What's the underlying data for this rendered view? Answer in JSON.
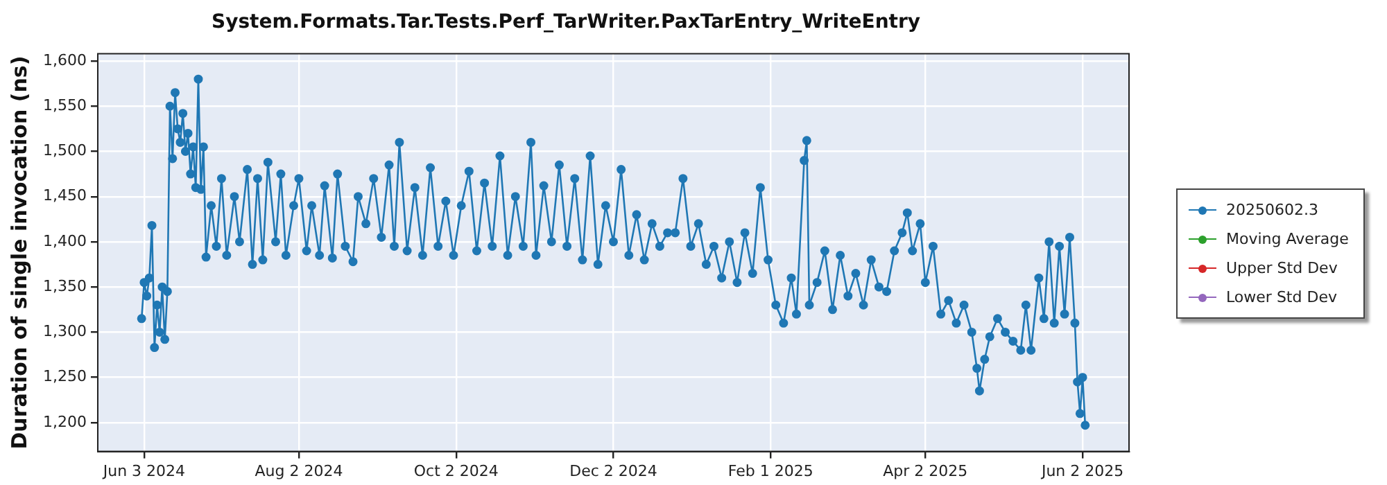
{
  "chart_data": {
    "type": "line",
    "title": "System.Formats.Tar.Tests.Perf_TarWriter.PaxTarEntry_WriteEntry",
    "ylabel": "Duration of single invocation (ns)",
    "x": [
      "2024-06-02",
      "2024-06-03",
      "2024-06-04",
      "2024-06-05",
      "2024-06-06",
      "2024-06-07",
      "2024-06-08",
      "2024-06-09",
      "2024-06-10",
      "2024-06-11",
      "2024-06-12",
      "2024-06-13",
      "2024-06-14",
      "2024-06-15",
      "2024-06-16",
      "2024-06-17",
      "2024-06-18",
      "2024-06-19",
      "2024-06-20",
      "2024-06-21",
      "2024-06-22",
      "2024-06-23",
      "2024-06-24",
      "2024-06-25",
      "2024-06-26",
      "2024-06-27",
      "2024-06-29",
      "2024-07-01",
      "2024-07-03",
      "2024-07-05",
      "2024-07-08",
      "2024-07-10",
      "2024-07-13",
      "2024-07-15",
      "2024-07-17",
      "2024-07-19",
      "2024-07-21",
      "2024-07-24",
      "2024-07-26",
      "2024-07-28",
      "2024-07-31",
      "2024-08-02",
      "2024-08-05",
      "2024-08-07",
      "2024-08-10",
      "2024-08-12",
      "2024-08-15",
      "2024-08-17",
      "2024-08-20",
      "2024-08-23",
      "2024-08-25",
      "2024-08-28",
      "2024-08-31",
      "2024-09-03",
      "2024-09-06",
      "2024-09-08",
      "2024-09-10",
      "2024-09-13",
      "2024-09-16",
      "2024-09-19",
      "2024-09-22",
      "2024-09-25",
      "2024-09-28",
      "2024-10-01",
      "2024-10-04",
      "2024-10-07",
      "2024-10-10",
      "2024-10-13",
      "2024-10-16",
      "2024-10-19",
      "2024-10-22",
      "2024-10-25",
      "2024-10-28",
      "2024-10-31",
      "2024-11-02",
      "2024-11-05",
      "2024-11-08",
      "2024-11-11",
      "2024-11-14",
      "2024-11-17",
      "2024-11-20",
      "2024-11-23",
      "2024-11-26",
      "2024-11-29",
      "2024-12-02",
      "2024-12-05",
      "2024-12-08",
      "2024-12-11",
      "2024-12-14",
      "2024-12-17",
      "2024-12-20",
      "2024-12-23",
      "2024-12-26",
      "2024-12-29",
      "2025-01-01",
      "2025-01-04",
      "2025-01-07",
      "2025-01-10",
      "2025-01-13",
      "2025-01-16",
      "2025-01-19",
      "2025-01-22",
      "2025-01-25",
      "2025-01-28",
      "2025-01-31",
      "2025-02-03",
      "2025-02-06",
      "2025-02-09",
      "2025-02-11",
      "2025-02-14",
      "2025-02-15",
      "2025-02-16",
      "2025-02-19",
      "2025-02-22",
      "2025-02-25",
      "2025-02-28",
      "2025-03-03",
      "2025-03-06",
      "2025-03-09",
      "2025-03-12",
      "2025-03-15",
      "2025-03-18",
      "2025-03-21",
      "2025-03-24",
      "2025-03-26",
      "2025-03-28",
      "2025-03-31",
      "2025-04-02",
      "2025-04-05",
      "2025-04-08",
      "2025-04-11",
      "2025-04-14",
      "2025-04-17",
      "2025-04-20",
      "2025-04-22",
      "2025-04-23",
      "2025-04-25",
      "2025-04-27",
      "2025-04-30",
      "2025-05-03",
      "2025-05-06",
      "2025-05-09",
      "2025-05-11",
      "2025-05-13",
      "2025-05-16",
      "2025-05-18",
      "2025-05-20",
      "2025-05-22",
      "2025-05-24",
      "2025-05-26",
      "2025-05-28",
      "2025-05-30",
      "2025-05-31",
      "2025-06-01",
      "2025-06-02",
      "2025-06-03"
    ],
    "series": [
      {
        "name": "20250602.3",
        "color": "#1f77b4",
        "values": [
          1315,
          1355,
          1340,
          1360,
          1418,
          1283,
          1330,
          1300,
          1350,
          1292,
          1345,
          1550,
          1492,
          1565,
          1525,
          1510,
          1542,
          1500,
          1520,
          1475,
          1505,
          1460,
          1580,
          1458,
          1505,
          1383,
          1440,
          1395,
          1470,
          1385,
          1450,
          1400,
          1480,
          1375,
          1470,
          1380,
          1488,
          1400,
          1475,
          1385,
          1440,
          1470,
          1390,
          1440,
          1385,
          1462,
          1382,
          1475,
          1395,
          1378,
          1450,
          1420,
          1470,
          1405,
          1485,
          1395,
          1510,
          1390,
          1460,
          1385,
          1482,
          1395,
          1445,
          1385,
          1440,
          1478,
          1390,
          1465,
          1395,
          1495,
          1385,
          1450,
          1395,
          1510,
          1385,
          1462,
          1400,
          1485,
          1395,
          1470,
          1380,
          1495,
          1375,
          1440,
          1400,
          1480,
          1385,
          1430,
          1380,
          1420,
          1395,
          1410,
          1410,
          1470,
          1395,
          1420,
          1375,
          1395,
          1360,
          1400,
          1355,
          1410,
          1365,
          1460,
          1380,
          1330,
          1310,
          1360,
          1320,
          1490,
          1512,
          1330,
          1355,
          1390,
          1325,
          1385,
          1340,
          1365,
          1330,
          1380,
          1350,
          1345,
          1390,
          1410,
          1432,
          1390,
          1420,
          1355,
          1395,
          1320,
          1335,
          1310,
          1330,
          1300,
          1260,
          1235,
          1270,
          1295,
          1315,
          1300,
          1290,
          1280,
          1330,
          1280,
          1360,
          1315,
          1400,
          1310,
          1395,
          1320,
          1405,
          1310,
          1245,
          1210,
          1250,
          1197
        ]
      },
      {
        "name": "Moving Average",
        "color": "#2ca02c",
        "values": [
          null,
          null,
          null,
          null,
          null,
          null,
          null,
          null,
          null,
          null,
          null,
          null,
          null,
          null,
          null,
          null,
          null,
          null,
          null,
          null,
          null,
          null,
          null,
          null,
          null,
          null,
          null,
          null,
          null,
          null,
          null,
          null,
          null,
          null,
          null,
          null,
          null,
          null,
          null,
          null,
          null,
          null,
          null,
          null,
          null,
          null,
          null,
          null,
          null,
          null,
          null,
          null,
          null,
          null,
          null,
          null,
          null,
          null,
          null,
          null,
          null,
          null,
          null,
          null,
          null,
          null,
          null,
          null,
          null,
          null,
          null,
          null,
          null,
          null,
          null,
          null,
          null,
          null,
          null,
          null,
          null,
          null,
          null,
          null,
          null,
          null,
          null,
          null,
          null,
          null,
          null,
          null,
          null,
          null,
          null,
          null,
          null,
          null,
          null,
          null,
          null,
          null,
          null,
          null,
          null,
          null,
          null,
          null,
          null,
          null,
          null,
          null,
          null,
          null,
          null,
          null,
          null,
          null,
          null,
          null,
          null,
          null,
          null,
          null,
          null,
          null,
          null,
          null,
          null,
          null,
          null,
          null,
          null,
          null,
          null,
          null,
          null,
          null,
          null,
          null,
          null,
          null,
          null,
          null,
          null,
          null,
          null,
          null,
          null,
          null,
          null,
          null,
          null,
          null,
          null,
          null
        ]
      },
      {
        "name": "Upper Std Dev",
        "color": "#d62728",
        "values": [
          null,
          null,
          null,
          null,
          null,
          null,
          null,
          null,
          null,
          null,
          null,
          null,
          null,
          null,
          null,
          null,
          null,
          null,
          null,
          null,
          null,
          null,
          null,
          null,
          null,
          null,
          null,
          null,
          null,
          null,
          null,
          null,
          null,
          null,
          null,
          null,
          null,
          null,
          null,
          null,
          null,
          null,
          null,
          null,
          null,
          null,
          null,
          null,
          null,
          null,
          null,
          null,
          null,
          null,
          null,
          null,
          null,
          null,
          null,
          null,
          null,
          null,
          null,
          null,
          null,
          null,
          null,
          null,
          null,
          null,
          null,
          null,
          null,
          null,
          null,
          null,
          null,
          null,
          null,
          null,
          null,
          null,
          null,
          null,
          null,
          null,
          null,
          null,
          null,
          null,
          null,
          null,
          null,
          null,
          null,
          null,
          null,
          null,
          null,
          null,
          null,
          null,
          null,
          null,
          null,
          null,
          null,
          null,
          null,
          null,
          null,
          null,
          null,
          null,
          null,
          null,
          null,
          null,
          null,
          null,
          null,
          null,
          null,
          null,
          null,
          null,
          null,
          null,
          null,
          null,
          null,
          null,
          null,
          null,
          null,
          null,
          null,
          null,
          null,
          null,
          null,
          null,
          null,
          null,
          null,
          null,
          null,
          null,
          null,
          null,
          null,
          null,
          null,
          null,
          null,
          null
        ]
      },
      {
        "name": "Lower Std Dev",
        "color": "#9467bd",
        "values": [
          null,
          null,
          null,
          null,
          null,
          null,
          null,
          null,
          null,
          null,
          null,
          null,
          null,
          null,
          null,
          null,
          null,
          null,
          null,
          null,
          null,
          null,
          null,
          null,
          null,
          null,
          null,
          null,
          null,
          null,
          null,
          null,
          null,
          null,
          null,
          null,
          null,
          null,
          null,
          null,
          null,
          null,
          null,
          null,
          null,
          null,
          null,
          null,
          null,
          null,
          null,
          null,
          null,
          null,
          null,
          null,
          null,
          null,
          null,
          null,
          null,
          null,
          null,
          null,
          null,
          null,
          null,
          null,
          null,
          null,
          null,
          null,
          null,
          null,
          null,
          null,
          null,
          null,
          null,
          null,
          null,
          null,
          null,
          null,
          null,
          null,
          null,
          null,
          null,
          null,
          null,
          null,
          null,
          null,
          null,
          null,
          null,
          null,
          null,
          null,
          null,
          null,
          null,
          null,
          null,
          null,
          null,
          null,
          null,
          null,
          null,
          null,
          null,
          null,
          null,
          null,
          null,
          null,
          null,
          null,
          null,
          null,
          null,
          null,
          null,
          null,
          null,
          null,
          null,
          null,
          null,
          null,
          null,
          null,
          null,
          null,
          null,
          null,
          null,
          null,
          null,
          null,
          null,
          null,
          null,
          null,
          null,
          null,
          null,
          null,
          null,
          null,
          null,
          null,
          null,
          null
        ]
      }
    ],
    "xlim": [
      "2024-05-16",
      "2025-06-20"
    ],
    "xticks": [
      {
        "value": "2024-06-03",
        "label": "Jun 3 2024"
      },
      {
        "value": "2024-08-02",
        "label": "Aug 2 2024"
      },
      {
        "value": "2024-10-02",
        "label": "Oct 2 2024"
      },
      {
        "value": "2024-12-02",
        "label": "Dec 2 2024"
      },
      {
        "value": "2025-02-01",
        "label": "Feb 1 2025"
      },
      {
        "value": "2025-04-02",
        "label": "Apr 2 2025"
      },
      {
        "value": "2025-06-02",
        "label": "Jun 2 2025"
      }
    ],
    "ylim": [
      1168,
      1608
    ],
    "yticks": [
      {
        "value": 1200,
        "label": "1,200"
      },
      {
        "value": 1250,
        "label": "1,250"
      },
      {
        "value": 1300,
        "label": "1,300"
      },
      {
        "value": 1350,
        "label": "1,350"
      },
      {
        "value": 1400,
        "label": "1,400"
      },
      {
        "value": 1450,
        "label": "1,450"
      },
      {
        "value": 1500,
        "label": "1,500"
      },
      {
        "value": 1550,
        "label": "1,550"
      },
      {
        "value": 1600,
        "label": "1,600"
      }
    ],
    "grid": true,
    "legend": "right",
    "marker": "circle",
    "line_style": "solid"
  }
}
